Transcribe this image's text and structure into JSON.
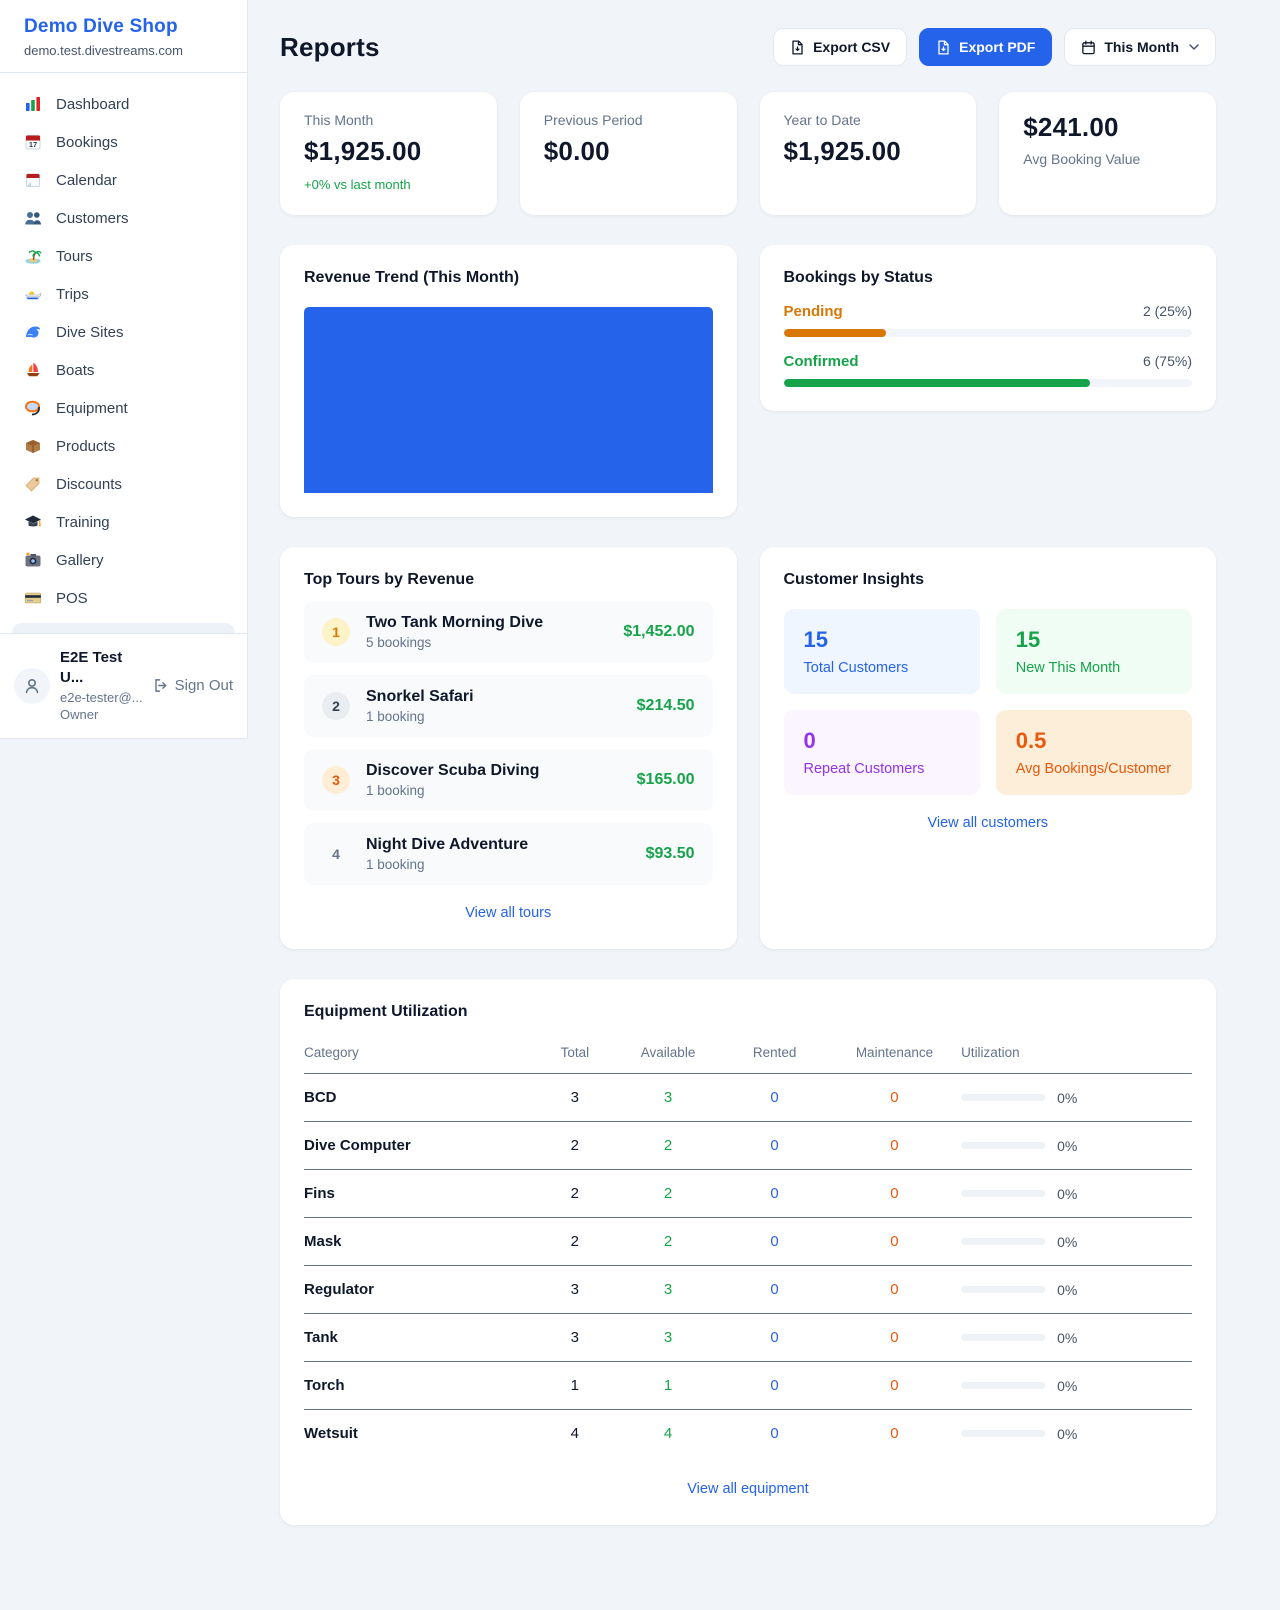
{
  "colors": {
    "accent": "#2563eb",
    "green": "#16a34a",
    "amber": "#d97706",
    "orange": "#ea580c",
    "purple": "#9333ea"
  },
  "sidebar": {
    "shop_name": "Demo Dive Shop",
    "domain": "demo.test.divestreams.com",
    "items": [
      {
        "icon": "dashboard-icon",
        "label": "Dashboard"
      },
      {
        "icon": "bookings-icon",
        "label": "Bookings"
      },
      {
        "icon": "calendar-icon",
        "label": "Calendar"
      },
      {
        "icon": "customers-icon",
        "label": "Customers"
      },
      {
        "icon": "tours-icon",
        "label": "Tours"
      },
      {
        "icon": "trips-icon",
        "label": "Trips"
      },
      {
        "icon": "dive-sites-icon",
        "label": "Dive Sites"
      },
      {
        "icon": "boats-icon",
        "label": "Boats"
      },
      {
        "icon": "equipment-icon",
        "label": "Equipment"
      },
      {
        "icon": "products-icon",
        "label": "Products"
      },
      {
        "icon": "discounts-icon",
        "label": "Discounts"
      },
      {
        "icon": "training-icon",
        "label": "Training"
      },
      {
        "icon": "gallery-icon",
        "label": "Gallery"
      },
      {
        "icon": "pos-icon",
        "label": "POS"
      }
    ],
    "user": {
      "name": "E2E Test U...",
      "email": "e2e-tester@...",
      "role": "Owner",
      "sign_out_label": "Sign Out"
    }
  },
  "header": {
    "title": "Reports",
    "export_csv_label": "Export CSV",
    "export_pdf_label": "Export PDF",
    "period_label": "This Month"
  },
  "stats": [
    {
      "label": "This Month",
      "value": "$1,925.00",
      "note": "+0% vs last month"
    },
    {
      "label": "Previous Period",
      "value": "$0.00"
    },
    {
      "label": "Year to Date",
      "value": "$1,925.00"
    },
    {
      "label": "Avg Booking Value",
      "value": "$241.00"
    }
  ],
  "revenue_trend": {
    "title": "Revenue Trend (This Month)"
  },
  "chart_data": {
    "type": "bar",
    "title": "Revenue Trend (This Month)",
    "categories": [
      ""
    ],
    "values": [
      1925
    ],
    "bar_color": "#2563eb",
    "notes": "single full-width solid blue bar; no axes, gridlines or labels visible"
  },
  "bookings_by_status": {
    "title": "Bookings by Status",
    "rows": [
      {
        "label": "Pending",
        "count_label": "2 (25%)",
        "percent": 25
      },
      {
        "label": "Confirmed",
        "count_label": "6 (75%)",
        "percent": 75
      }
    ]
  },
  "top_tours": {
    "title": "Top Tours by Revenue",
    "rows": [
      {
        "rank": "1",
        "name": "Two Tank Morning Dive",
        "bookings": "5 bookings",
        "revenue": "$1,452.00"
      },
      {
        "rank": "2",
        "name": "Snorkel Safari",
        "bookings": "1 booking",
        "revenue": "$214.50"
      },
      {
        "rank": "3",
        "name": "Discover Scuba Diving",
        "bookings": "1 booking",
        "revenue": "$165.00"
      },
      {
        "rank": "4",
        "name": "Night Dive Adventure",
        "bookings": "1 booking",
        "revenue": "$93.50"
      }
    ],
    "link_label": "View all tours"
  },
  "customer_insights": {
    "title": "Customer Insights",
    "tiles": [
      {
        "value": "15",
        "label": "Total Customers"
      },
      {
        "value": "15",
        "label": "New This Month"
      },
      {
        "value": "0",
        "label": "Repeat Customers"
      },
      {
        "value": "0.5",
        "label": "Avg Bookings/Customer"
      }
    ],
    "link_label": "View all customers"
  },
  "equipment": {
    "title": "Equipment Utilization",
    "columns": [
      "Category",
      "Total",
      "Available",
      "Rented",
      "Maintenance",
      "Utilization"
    ],
    "rows": [
      {
        "category": "BCD",
        "total": "3",
        "available": "3",
        "rented": "0",
        "maintenance": "0",
        "utilization": "0%"
      },
      {
        "category": "Dive Computer",
        "total": "2",
        "available": "2",
        "rented": "0",
        "maintenance": "0",
        "utilization": "0%"
      },
      {
        "category": "Fins",
        "total": "2",
        "available": "2",
        "rented": "0",
        "maintenance": "0",
        "utilization": "0%"
      },
      {
        "category": "Mask",
        "total": "2",
        "available": "2",
        "rented": "0",
        "maintenance": "0",
        "utilization": "0%"
      },
      {
        "category": "Regulator",
        "total": "3",
        "available": "3",
        "rented": "0",
        "maintenance": "0",
        "utilization": "0%"
      },
      {
        "category": "Tank",
        "total": "3",
        "available": "3",
        "rented": "0",
        "maintenance": "0",
        "utilization": "0%"
      },
      {
        "category": "Torch",
        "total": "1",
        "available": "1",
        "rented": "0",
        "maintenance": "0",
        "utilization": "0%"
      },
      {
        "category": "Wetsuit",
        "total": "4",
        "available": "4",
        "rented": "0",
        "maintenance": "0",
        "utilization": "0%"
      }
    ],
    "link_label": "View all equipment"
  }
}
